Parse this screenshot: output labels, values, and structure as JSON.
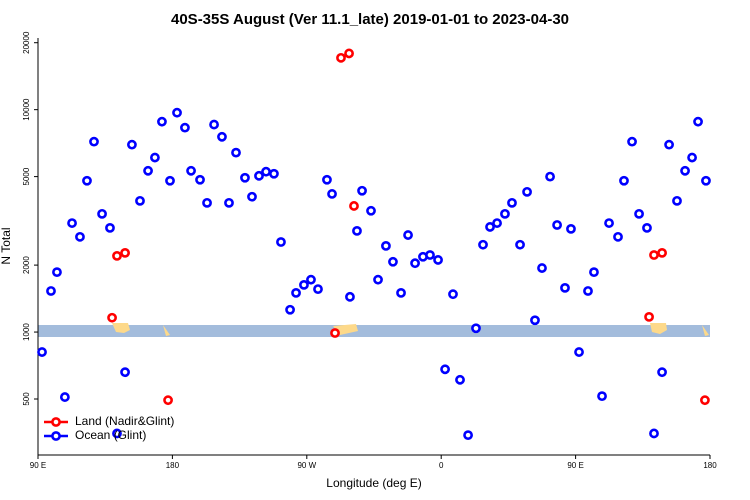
{
  "chart_data": {
    "type": "scatter",
    "title": "40S-35S August (Ver 11.1_late)   2019-01-01 to 2023-04-30",
    "x_label": "Longitude (deg E)",
    "y_label": "N Total",
    "ylog": true,
    "xlim": [
      90,
      540
    ],
    "ylim": [
      280,
      21000
    ],
    "xticks": [
      {
        "value": 90,
        "label": "90 E"
      },
      {
        "value": 180,
        "label": "180"
      },
      {
        "value": 270,
        "label": "90 W"
      },
      {
        "value": 360,
        "label": "0"
      },
      {
        "value": 450,
        "label": "90 E"
      },
      {
        "value": 540,
        "label": "180"
      }
    ],
    "yticks": [
      500,
      1000,
      2000,
      5000,
      10000,
      20000
    ],
    "legend": "bottom-left",
    "series": [
      {
        "name": "Land (Nadir&Glint)",
        "color": "#ff0000",
        "x": [
          139.6,
          142.9,
          148.3,
          177.1,
          288.9,
          292.9,
          298.3,
          301.6,
          499.2,
          502.5,
          507.9,
          536.6
        ],
        "values": [
          1160,
          2200,
          2270,
          494,
          990,
          17100,
          17900,
          3690,
          1170,
          2220,
          2270,
          494
        ]
      },
      {
        "name": "Ocean (Glint)",
        "color": "#0000ff",
        "x": [
          92.7,
          98.7,
          102.7,
          108,
          112.8,
          118.1,
          122.8,
          127.5,
          132.9,
          138.2,
          142.9,
          148.3,
          152.9,
          158.3,
          163.7,
          168.3,
          173,
          178.4,
          183.1,
          188.4,
          192.5,
          198.5,
          203.2,
          207.9,
          213.2,
          217.9,
          222.6,
          228.6,
          233.3,
          238,
          242.7,
          248,
          252.7,
          258.8,
          262.8,
          268.1,
          272.8,
          277.5,
          283.5,
          286.9,
          298.9,
          303.6,
          307,
          313,
          317.7,
          323,
          327.7,
          333.1,
          337.8,
          342.5,
          347.8,
          352.5,
          357.9,
          362.6,
          367.9,
          372.6,
          378,
          383.3,
          388,
          392.7,
          397.4,
          402.7,
          407.4,
          412.8,
          417.5,
          422.8,
          427.5,
          432.9,
          437.6,
          442.9,
          446.9,
          452.3,
          458.3,
          462.3,
          467.7,
          472.4,
          478.4,
          482.4,
          487.8,
          492.5,
          497.8,
          502.5,
          507.9,
          512.6,
          517.9,
          523.3,
          528,
          532,
          537.3
        ],
        "values": [
          813,
          1530,
          1860,
          510,
          3090,
          2680,
          4790,
          7180,
          3400,
          2940,
          350,
          660,
          6960,
          3890,
          5310,
          6090,
          8830,
          4790,
          9690,
          8300,
          5310,
          4840,
          3810,
          8570,
          7550,
          3810,
          6410,
          4940,
          4060,
          5040,
          5260,
          5150,
          2540,
          1260,
          1500,
          1630,
          1720,
          1560,
          4840,
          4180,
          1440,
          2850,
          4320,
          3510,
          1720,
          2440,
          2070,
          1500,
          2730,
          2040,
          2180,
          2220,
          2110,
          680,
          1480,
          610,
          344,
          1040,
          2470,
          2970,
          3090,
          3400,
          3810,
          2470,
          4270,
          1130,
          1940,
          5000,
          3030,
          1580,
          2910,
          813,
          1530,
          1860,
          515,
          3090,
          2680,
          4790,
          7180,
          3400,
          2940,
          350,
          660,
          6960,
          3890,
          5310,
          6090,
          8830,
          4790
        ]
      }
    ]
  }
}
